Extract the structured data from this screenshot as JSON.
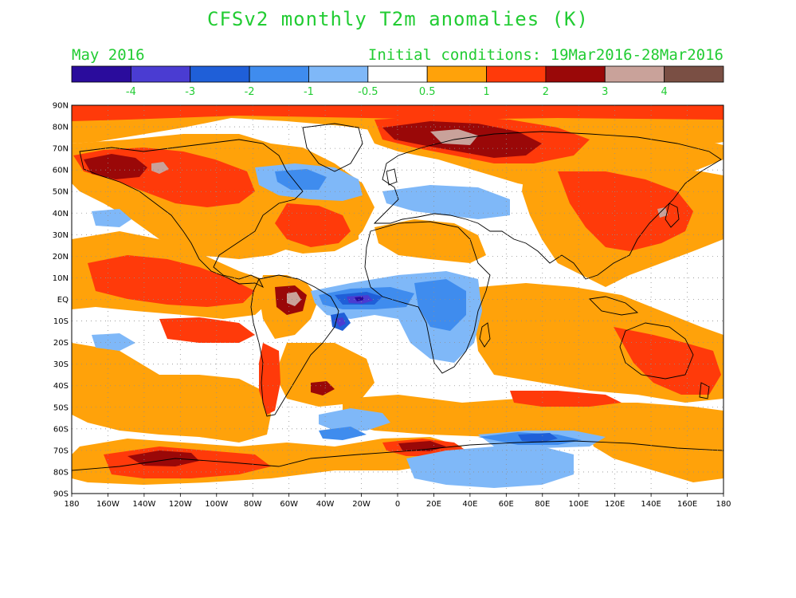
{
  "title": "CFSv2 monthly T2m anomalies (K)",
  "valid_month": "May 2016",
  "initial_conditions": "Initial conditions: 19Mar2016-28Mar2016",
  "colorbar": {
    "tick_labels": [
      "-4",
      "-3",
      "-2",
      "-1",
      "-0.5",
      "0.5",
      "1",
      "2",
      "3",
      "4"
    ],
    "colors": [
      "#2a0c9c",
      "#4a3cd2",
      "#1f5fd8",
      "#3f8cee",
      "#7fb8f8",
      "#ffffff",
      "#ffa20a",
      "#ff3a0a",
      "#9a0808",
      "#c9a29a",
      "#7a4f44"
    ]
  },
  "map": {
    "lat_labels": [
      "90N",
      "80N",
      "70N",
      "60N",
      "50N",
      "40N",
      "30N",
      "20N",
      "10N",
      "EQ",
      "10S",
      "20S",
      "30S",
      "40S",
      "50S",
      "60S",
      "70S",
      "80S",
      "90S"
    ],
    "lon_labels": [
      "180",
      "160W",
      "140W",
      "120W",
      "100W",
      "80W",
      "60W",
      "40W",
      "20W",
      "0",
      "20E",
      "40E",
      "60E",
      "80E",
      "100E",
      "120E",
      "140E",
      "160E",
      "180"
    ],
    "grid": true
  }
}
